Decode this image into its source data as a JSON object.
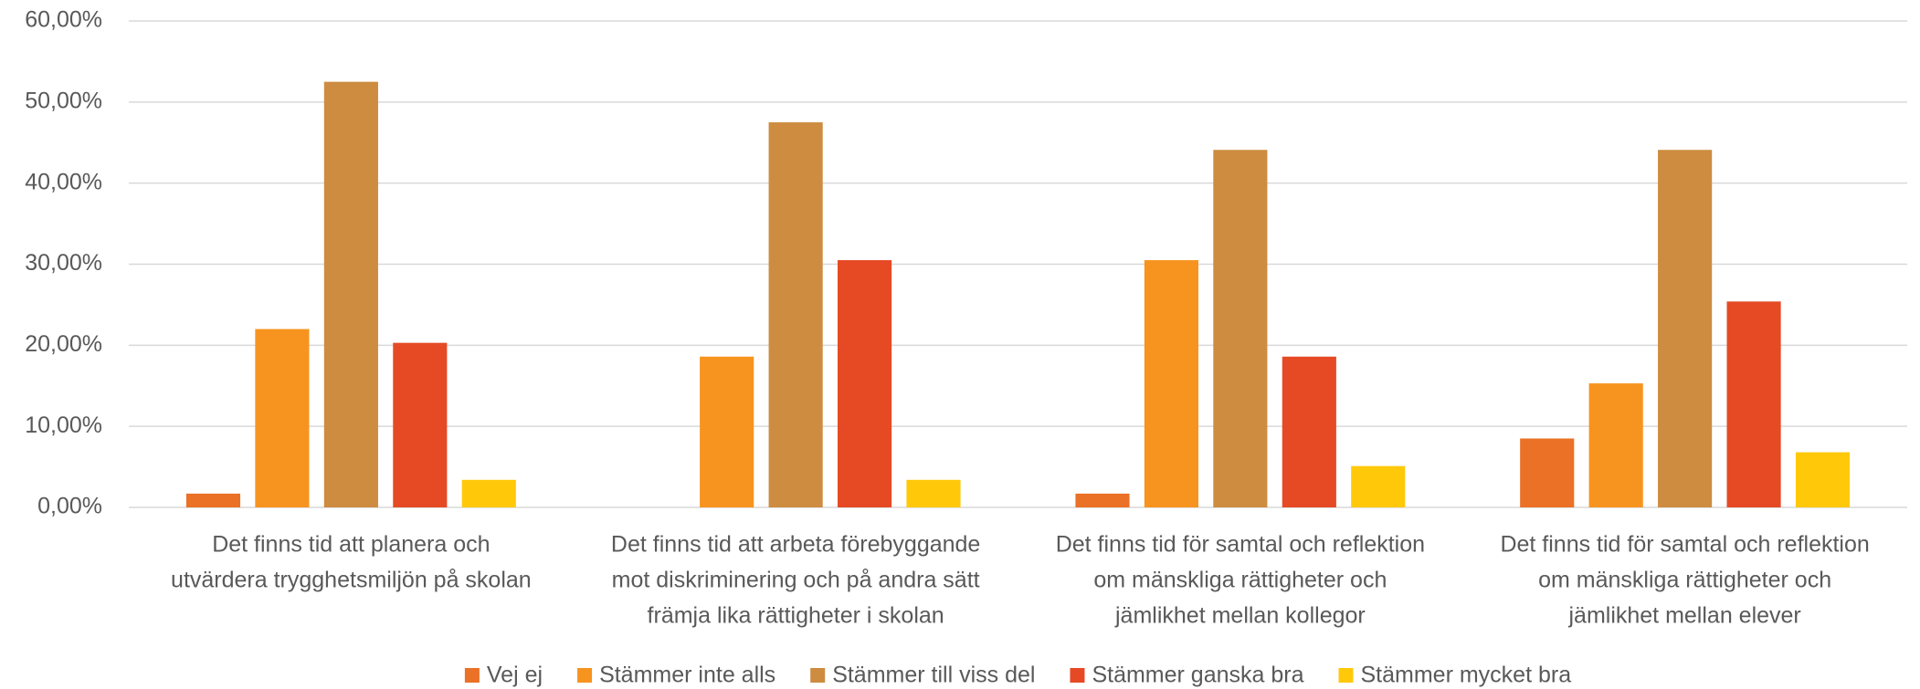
{
  "chart_data": {
    "type": "bar",
    "categories": [
      [
        "Det finns tid att planera och",
        "utvärdera trygghetsmiljön på skolan"
      ],
      [
        "Det finns tid att arbeta förebyggande",
        "mot diskriminering och på andra sätt",
        "främja lika rättigheter i skolan"
      ],
      [
        "Det finns tid för samtal och reflektion",
        "om mänskliga rättigheter och",
        "jämlikhet mellan kollegor"
      ],
      [
        "Det finns tid för samtal och reflektion",
        "om mänskliga rättigheter och",
        "jämlikhet mellan elever"
      ]
    ],
    "series": [
      {
        "name": "Vej ej",
        "color": "#ea7125",
        "values": [
          1.7,
          0,
          1.7,
          8.5
        ]
      },
      {
        "name": "Stämmer inte alls",
        "color": "#f7941f",
        "values": [
          22.0,
          18.6,
          30.5,
          15.3
        ]
      },
      {
        "name": "Stämmer till viss del",
        "color": "#cd8c40",
        "values": [
          52.5,
          47.5,
          44.1,
          44.1
        ]
      },
      {
        "name": "Stämmer ganska bra",
        "color": "#e54a25",
        "values": [
          20.3,
          30.5,
          18.6,
          25.4
        ]
      },
      {
        "name": "Stämmer mycket bra",
        "color": "#ffc90a",
        "values": [
          3.4,
          3.4,
          5.1,
          6.8
        ]
      }
    ],
    "ylim": [
      0,
      60
    ],
    "yticks": [
      {
        "value": 0,
        "label": "0,00%"
      },
      {
        "value": 10,
        "label": "10,00%"
      },
      {
        "value": 20,
        "label": "20,00%"
      },
      {
        "value": 30,
        "label": "30,00%"
      },
      {
        "value": 40,
        "label": "40,00%"
      },
      {
        "value": 50,
        "label": "50,00%"
      },
      {
        "value": 60,
        "label": "60,00%"
      }
    ],
    "grid": true,
    "legend": "bottom"
  }
}
